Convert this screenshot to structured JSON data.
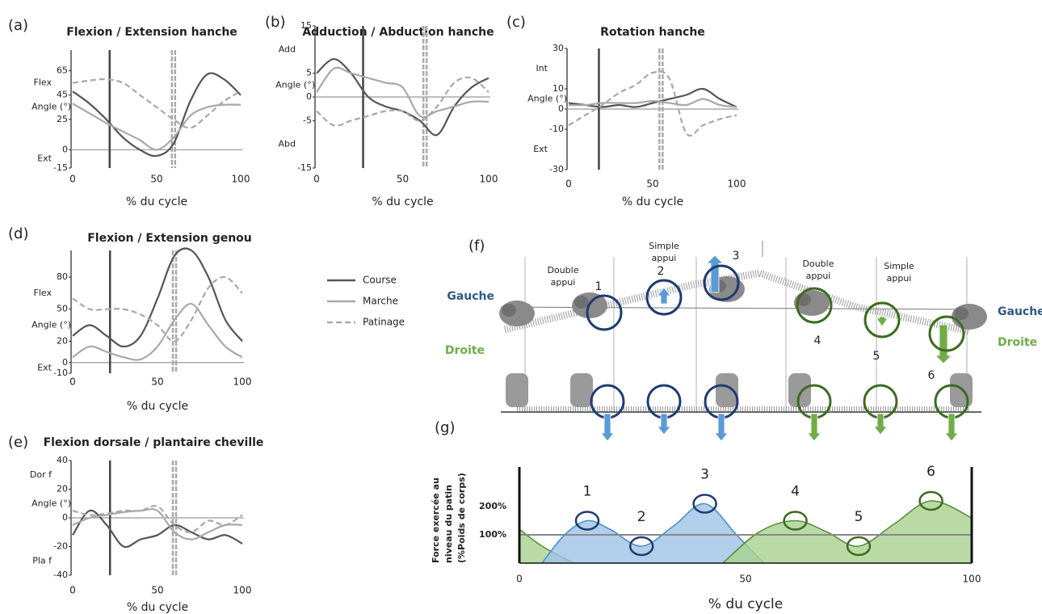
{
  "legend": [
    {
      "name": "Course",
      "color": "#555555",
      "dash": false
    },
    {
      "name": "Marche",
      "color": "#a8a8a8",
      "dash": false
    },
    {
      "name": "Patinage",
      "color": "#a8a8a8",
      "dash": true
    }
  ],
  "chart_data": [
    {
      "type": "line",
      "panel": "(a)",
      "title": "Flexion / Extension hanche",
      "y_top_label": "Flex",
      "y_bottom_label": "Ext",
      "ylabel": "Angle (°)",
      "xlabel": "% du cycle",
      "x": [
        0,
        10,
        20,
        30,
        40,
        50,
        60,
        70,
        80,
        90,
        100
      ],
      "xlim": [
        0,
        100
      ],
      "xticks": [
        0,
        50,
        100
      ],
      "ylim": [
        -15,
        82
      ],
      "yticks": [
        65,
        45,
        25,
        0,
        -15
      ],
      "series": [
        {
          "values": [
            48,
            38,
            25,
            10,
            0,
            -5,
            5,
            40,
            62,
            58,
            45
          ]
        },
        {
          "values": [
            38,
            30,
            22,
            15,
            8,
            0,
            10,
            28,
            35,
            37,
            37
          ]
        },
        {
          "values": [
            55,
            57,
            58,
            55,
            45,
            35,
            25,
            18,
            28,
            40,
            48
          ]
        }
      ],
      "vlines": [
        22,
        60
      ]
    },
    {
      "type": "line",
      "panel": "(b)",
      "title": "Adduction / Abduction hanche",
      "y_top_label": "Add",
      "y_bottom_label": "Abd",
      "ylabel": "Angle (°)",
      "xlabel": "% du cycle",
      "x": [
        0,
        10,
        20,
        30,
        40,
        50,
        60,
        70,
        80,
        90,
        100
      ],
      "xlim": [
        0,
        100
      ],
      "xticks": [
        0,
        50,
        100
      ],
      "ylim": [
        -15,
        15
      ],
      "yticks": [
        15,
        5,
        0,
        -5,
        -15
      ],
      "series": [
        {
          "values": [
            5,
            8,
            5,
            0,
            -2,
            -3,
            -5,
            -8,
            -2,
            2,
            4
          ]
        },
        {
          "values": [
            1,
            6,
            5,
            4,
            3,
            2,
            -4,
            -3,
            -2,
            -1,
            -1
          ]
        },
        {
          "values": [
            -3,
            -6,
            -5,
            -4,
            -3,
            -3,
            -5,
            -2,
            3,
            4,
            1
          ]
        }
      ],
      "vlines": [
        27,
        63
      ]
    },
    {
      "type": "line",
      "panel": "(c)",
      "title": "Rotation hanche",
      "y_top_label": "Int",
      "y_bottom_label": "Ext",
      "ylabel": "Angle (°)",
      "xlabel": "% du cycle",
      "x": [
        0,
        10,
        20,
        30,
        40,
        50,
        60,
        70,
        80,
        90,
        100
      ],
      "xlim": [
        0,
        100
      ],
      "xticks": [
        0,
        50,
        100
      ],
      "ylim": [
        -30,
        30
      ],
      "yticks": [
        30,
        10,
        0,
        -10,
        -30
      ],
      "series": [
        {
          "values": [
            3,
            2,
            1,
            2,
            1,
            3,
            5,
            7,
            10,
            5,
            1
          ]
        },
        {
          "values": [
            2,
            2,
            3,
            3,
            3,
            4,
            3,
            2,
            5,
            2,
            1
          ]
        },
        {
          "values": [
            -8,
            -3,
            2,
            8,
            12,
            18,
            15,
            -12,
            -8,
            -5,
            -3
          ]
        }
      ],
      "vlines": [
        18,
        55
      ]
    },
    {
      "type": "line",
      "panel": "(d)",
      "title": "Flexion / Extension genou",
      "y_top_label": "Flex",
      "y_bottom_label": "Ext",
      "ylabel": "Angle (°)",
      "xlabel": "% du cycle",
      "x": [
        0,
        10,
        20,
        30,
        40,
        50,
        60,
        70,
        80,
        90,
        100
      ],
      "xlim": [
        0,
        100
      ],
      "xticks": [
        0,
        50,
        100
      ],
      "ylim": [
        -10,
        105
      ],
      "yticks": [
        80,
        50,
        20,
        0,
        -10
      ],
      "series": [
        {
          "values": [
            25,
            35,
            25,
            15,
            25,
            60,
            100,
            105,
            80,
            40,
            20
          ]
        },
        {
          "values": [
            5,
            15,
            10,
            5,
            3,
            15,
            40,
            55,
            35,
            15,
            5
          ]
        },
        {
          "values": [
            60,
            50,
            50,
            50,
            45,
            35,
            20,
            40,
            70,
            80,
            65
          ]
        }
      ],
      "vlines": [
        22,
        60
      ]
    },
    {
      "type": "line",
      "panel": "(e)",
      "title": "Flexion dorsale / plantaire cheville",
      "y_top_label": "Dor f",
      "y_bottom_label": "Pla f",
      "ylabel": "Angle (°)",
      "xlabel": "% du cycle",
      "x": [
        0,
        10,
        20,
        30,
        40,
        50,
        60,
        70,
        80,
        90,
        100
      ],
      "xlim": [
        0,
        100
      ],
      "xticks": [
        0,
        50,
        100
      ],
      "ylim": [
        -40,
        40
      ],
      "yticks": [
        40,
        20,
        0,
        -20,
        -40
      ],
      "series": [
        {
          "values": [
            -12,
            5,
            -5,
            -20,
            -15,
            -12,
            -5,
            -10,
            -15,
            -12,
            -18
          ]
        },
        {
          "values": [
            -5,
            0,
            2,
            4,
            5,
            5,
            -10,
            -15,
            -10,
            -5,
            -5
          ]
        },
        {
          "values": [
            5,
            2,
            3,
            5,
            5,
            8,
            -5,
            -10,
            -2,
            -5,
            2
          ]
        }
      ],
      "vlines": [
        22,
        60
      ]
    },
    {
      "type": "area",
      "panel": "(g)",
      "ylabel": [
        "Force exercée au",
        "niveau du patin",
        "(%Poids de corps)"
      ],
      "xlabel": "% du cycle",
      "xlim": [
        0,
        100
      ],
      "xticks": [
        0,
        50,
        100
      ],
      "ylim": [
        0,
        340
      ],
      "yticks": [
        {
          "value": 200,
          "label": "200%"
        },
        {
          "value": 100,
          "label": "100%"
        }
      ],
      "hline": 100,
      "series": [
        {
          "color": "#a9d18e",
          "x": [
            0,
            5,
            12
          ],
          "values": [
            120,
            60,
            0
          ]
        },
        {
          "color": "#9dc3e6",
          "x": [
            5,
            10,
            15,
            20,
            27,
            34,
            41,
            48,
            54
          ],
          "values": [
            0,
            100,
            150,
            120,
            60,
            130,
            210,
            100,
            0
          ]
        },
        {
          "color": "#a9d18e",
          "x": [
            45,
            53,
            61,
            68,
            75,
            83,
            91,
            100
          ],
          "values": [
            0,
            110,
            150,
            110,
            60,
            140,
            220,
            160
          ]
        }
      ],
      "annotations": [
        {
          "label": "1",
          "x": 15,
          "y": 150,
          "color": "#1f3b73"
        },
        {
          "label": "2",
          "x": 27,
          "y": 60,
          "color": "#1f3b73"
        },
        {
          "label": "3",
          "x": 41,
          "y": 210,
          "color": "#1f3b73"
        },
        {
          "label": "4",
          "x": 61,
          "y": 150,
          "color": "#3d6b21"
        },
        {
          "label": "5",
          "x": 75,
          "y": 60,
          "color": "#3d6b21"
        },
        {
          "label": "6",
          "x": 91,
          "y": 220,
          "color": "#3d6b21"
        }
      ]
    }
  ],
  "illustration": {
    "label": "(f)",
    "phases": [
      {
        "lines": [
          "Double",
          "appui"
        ]
      },
      {
        "lines": [
          "Simple",
          "appui"
        ]
      },
      {
        "lines": [
          "Double",
          "appui"
        ]
      },
      {
        "lines": [
          "Simple",
          "appui"
        ]
      }
    ],
    "numbers": [
      "1",
      "2",
      "3",
      "4",
      "5",
      "6"
    ],
    "left": {
      "top": "Gauche",
      "bottom": "Droite"
    },
    "right": {
      "top": "Gauche",
      "bottom": "Droite"
    }
  }
}
